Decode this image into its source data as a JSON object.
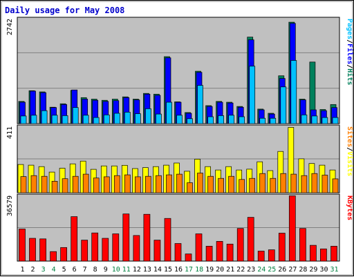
{
  "chart_data": {
    "type": "bar",
    "title": "Daily usage for May 2008",
    "colors": {
      "title": "#0000cc",
      "background": "#c0c0c0",
      "grid": "#808080",
      "hits": "#00805c",
      "files": "#0000ff",
      "pages": "#00c0ff",
      "visits": "#ffff00",
      "sites": "#ff8000",
      "kbytes": "#ff0000",
      "weekday_label": "#000000",
      "weekend_label": "#008040"
    },
    "categories": [
      "1",
      "2",
      "3",
      "4",
      "5",
      "6",
      "7",
      "8",
      "9",
      "10",
      "11",
      "12",
      "13",
      "14",
      "15",
      "16",
      "17",
      "18",
      "19",
      "20",
      "21",
      "22",
      "23",
      "24",
      "25",
      "26",
      "27",
      "28",
      "29",
      "30",
      "31"
    ],
    "weekend_days": [
      "3",
      "4",
      "10",
      "11",
      "17",
      "18",
      "24",
      "25",
      "31"
    ],
    "panels": [
      {
        "name": "hits-files-pages",
        "ymax_label": "2742",
        "ylim": [
          0,
          2742
        ],
        "legend": [
          "Pages",
          "/",
          "Files",
          "/",
          "Hits"
        ],
        "series": [
          {
            "name": "Hits",
            "values": [
              580,
              860,
              830,
              430,
              520,
              870,
              680,
              640,
              610,
              640,
              700,
              640,
              790,
              770,
              1750,
              570,
              290,
              1370,
              470,
              580,
              560,
              450,
              2260,
              380,
              270,
              1250,
              2650,
              640,
              1610,
              370,
              500
            ]
          },
          {
            "name": "Files",
            "values": [
              560,
              850,
              810,
              420,
              500,
              880,
              640,
              610,
              580,
              600,
              680,
              620,
              770,
              740,
              1720,
              560,
              270,
              1340,
              450,
              560,
              540,
              430,
              2190,
              360,
              250,
              1180,
              2620,
              620,
              360,
              340,
              420
            ]
          },
          {
            "name": "Pages",
            "values": [
              200,
              220,
              340,
              220,
              210,
              420,
              220,
              160,
              230,
              270,
              300,
              260,
              390,
              250,
              560,
              220,
              130,
              1000,
              180,
              210,
              220,
              180,
              1500,
              140,
              140,
              960,
              1650,
              230,
              200,
              160,
              160
            ]
          }
        ]
      },
      {
        "name": "visits-sites",
        "ymax_label": "411",
        "ylim": [
          0,
          411
        ],
        "legend": [
          "Sites",
          "/",
          "Visits"
        ],
        "series": [
          {
            "name": "Visits",
            "values": [
              175,
              171,
              162,
              128,
              152,
              179,
              196,
              145,
              166,
              166,
              170,
              150,
              156,
              162,
              171,
              184,
              133,
              208,
              162,
              141,
              162,
              141,
              146,
              192,
              137,
              256,
              405,
              210,
              181,
              171,
              141
            ]
          },
          {
            "name": "Sites",
            "values": [
              100,
              106,
              102,
              71,
              87,
              102,
              115,
              91,
              99,
              106,
              111,
              99,
              102,
              106,
              111,
              115,
              62,
              122,
              102,
              89,
              102,
              82,
              89,
              119,
              89,
              119,
              115,
              106,
              119,
              109,
              86
            ]
          }
        ]
      },
      {
        "name": "kbytes",
        "ymax_label": "36579",
        "ylim": [
          0,
          36579
        ],
        "legend": [
          "KBytes"
        ],
        "series": [
          {
            "name": "KBytes",
            "values": [
              17900,
              12700,
              12400,
              5300,
              7600,
              24800,
              11700,
              15700,
              12700,
              15200,
              26300,
              14300,
              26100,
              11700,
              23800,
              9800,
              4000,
              15200,
              8300,
              11000,
              9500,
              18200,
              24400,
              5600,
              6300,
              15600,
              36400,
              18200,
              8800,
              6800,
              8300
            ]
          }
        ]
      }
    ]
  }
}
